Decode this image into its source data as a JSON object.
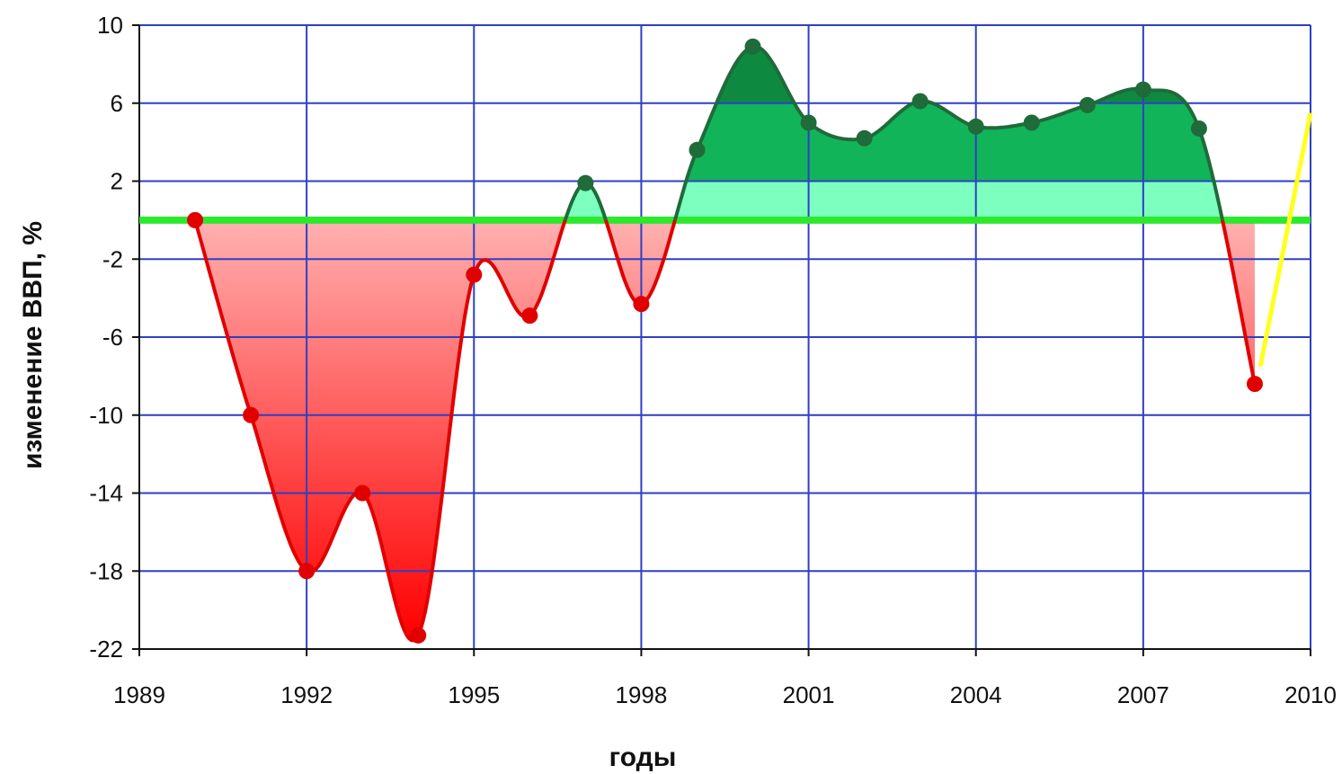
{
  "chart_data": {
    "type": "area",
    "xlabel": "годы",
    "ylabel": "изменение ВВП, %",
    "xlim": [
      1989,
      2010
    ],
    "ylim": [
      -22,
      10
    ],
    "x_ticks": [
      "1989",
      "1992",
      "1995",
      "1998",
      "2001",
      "2004",
      "2007",
      "2010"
    ],
    "y_ticks": [
      "10",
      "6",
      "2",
      "-2",
      "-6",
      "-10",
      "-14",
      "-18",
      "-22"
    ],
    "grid": true,
    "reference_line": 0,
    "series": [
      {
        "x": [
          1990,
          1991,
          1992,
          1993,
          1994,
          1995,
          1996,
          1997,
          1998,
          1999,
          2000,
          2001,
          2002,
          2003,
          2004,
          2005,
          2006,
          2007,
          2008,
          2009
        ],
        "y": [
          0,
          -10,
          -18,
          -14,
          -21.3,
          -2.8,
          -4.9,
          1.9,
          -4.3,
          3.6,
          8.9,
          5.0,
          4.2,
          6.1,
          4.8,
          5.0,
          5.9,
          6.7,
          4.7,
          -8.4
        ]
      },
      {
        "x": [
          2009.1,
          2010
        ],
        "y": [
          -7.5,
          5.5
        ]
      }
    ],
    "colors": {
      "grid": "#2e3fc4",
      "zero_line": "#2ee82e",
      "positive_line": "#1f6b3a",
      "negative_line": "#e00000",
      "forecast_line": "#ffff22",
      "pos_light": "#7dffc0",
      "pos_mid": "#12b45a",
      "pos_dark": "#0e8a40",
      "neg_light": "#ffb0b0",
      "neg_mid": "#ff3c3c",
      "neg_dark": "#ff0000"
    }
  }
}
